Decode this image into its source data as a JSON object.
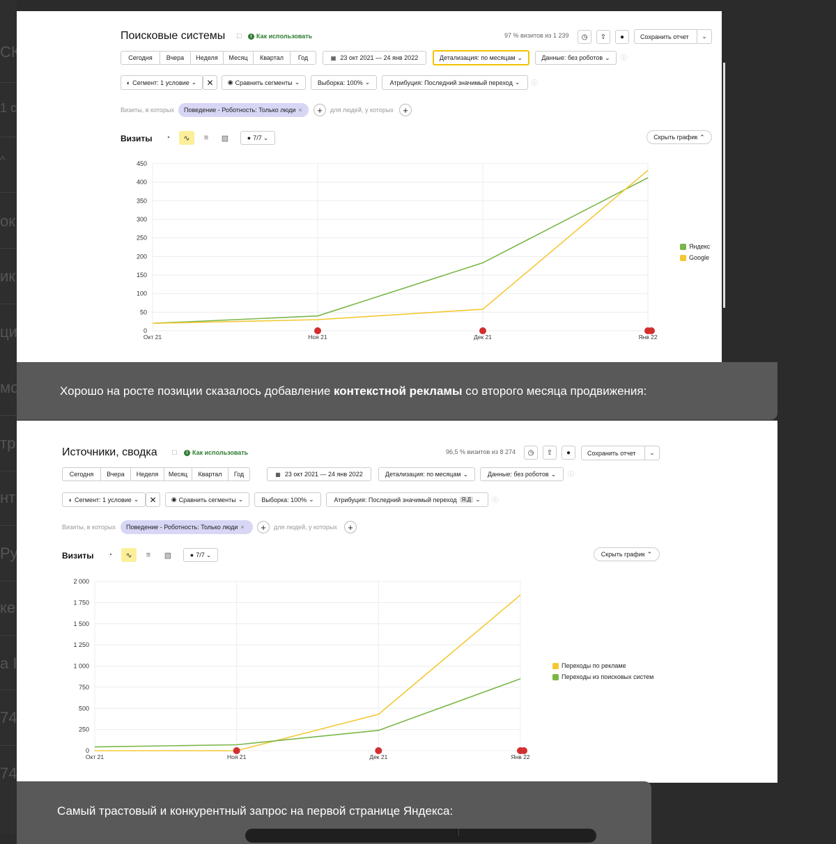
{
  "colors": {
    "yandex_green": "#7ab648",
    "google_yellow": "#f5c833",
    "marker_red": "#d32f2f"
  },
  "background_sidebar": {
    "fragments": [
      "СК",
      "1 с",
      "^",
      "ок",
      "ик",
      "ци",
      "мо",
      "тр",
      "нт",
      "Ру",
      "ке",
      "а I",
      "74_",
      "74"
    ]
  },
  "report1": {
    "title": "Поисковые системы",
    "howto": "Как использовать",
    "visits_info": "97 % визитов из 1 239",
    "save_label": "Сохранить отчет",
    "periods": [
      "Сегодня",
      "Вчера",
      "Неделя",
      "Месяц",
      "Квартал",
      "Год"
    ],
    "date_range": "23 окт 2021 — 24 янв 2022",
    "detail": "Детализация: по месяцам",
    "data_filter": "Данные: без роботов",
    "segment": "Сегмент: 1 условие",
    "compare": "Сравнить сегменты",
    "sample": "Выборка: 100%",
    "attribution": "Атрибуция: Последний значимый переход",
    "filter_prefix": "Визиты, в которых",
    "filter_chip": "Поведение - Роботность: Только люди",
    "filter_people": "для людей, у которых",
    "visits_label": "Визиты",
    "counter": "7/7",
    "hide_chart": "Скрыть график"
  },
  "report2": {
    "title": "Источники, сводка",
    "howto": "Как использовать",
    "visits_info": "96,5 % визитов из 8 274",
    "save_label": "Сохранить отчет",
    "periods": [
      "Сегодня",
      "Вчера",
      "Неделя",
      "Месяц",
      "Квартал",
      "Год"
    ],
    "date_range": "23 окт 2021 — 24 янв 2022",
    "detail": "Детализация: по месяцам",
    "data_filter": "Данные: без роботов",
    "segment": "Сегмент: 1 условие",
    "compare": "Сравнить сегменты",
    "sample": "Выборка: 100%",
    "attribution": "Атрибуция: Последний значимый переход",
    "attribution_badge": "Я.Д",
    "filter_prefix": "Визиты, в которых",
    "filter_chip": "Поведение - Роботность: Только люди",
    "filter_people": "для людей, у которых",
    "visits_label": "Визиты",
    "counter": "7/7",
    "hide_chart": "Скрыть график"
  },
  "caption1": {
    "before": "Хорошо на росте позиции сказалось добавление ",
    "bold": "контекстной рекламы",
    "after": " со второго месяца продвижения:"
  },
  "caption2": {
    "text": "Самый трастовый и конкурентный запрос на первой странице Яндекса:"
  },
  "chart_data": [
    {
      "type": "line",
      "categories": [
        "Окт 21",
        "Ноя 21",
        "Дек 21",
        "Янв 22"
      ],
      "ylim": [
        0,
        450
      ],
      "yticks": [
        0,
        50,
        100,
        150,
        200,
        250,
        300,
        350,
        400,
        450
      ],
      "ytick_labels": [
        "0",
        "50",
        "100",
        "150",
        "200",
        "250",
        "300",
        "350",
        "400",
        "450"
      ],
      "legend_position": "right",
      "grid": true,
      "series": [
        {
          "name": "Яндекс",
          "color": "#7ab648",
          "values": [
            20,
            40,
            183,
            412
          ]
        },
        {
          "name": "Google",
          "color": "#f5c833",
          "values": [
            20,
            30,
            58,
            432
          ]
        }
      ]
    },
    {
      "type": "line",
      "categories": [
        "Окт 21",
        "Ноя 21",
        "Дек 21",
        "Янв 22"
      ],
      "ylim": [
        0,
        2000
      ],
      "yticks": [
        0,
        250,
        500,
        750,
        1000,
        1250,
        1500,
        1750,
        2000
      ],
      "ytick_labels": [
        "0",
        "250",
        "500",
        "750",
        "1 000",
        "1 250",
        "1 500",
        "1 750",
        "2 000"
      ],
      "legend_position": "right",
      "grid": true,
      "series": [
        {
          "name": "Переходы по рекламе",
          "color": "#f5c833",
          "values": [
            0,
            0,
            430,
            1840
          ]
        },
        {
          "name": "Переходы из поисковых систем",
          "color": "#7ab648",
          "values": [
            45,
            70,
            240,
            850
          ]
        }
      ]
    }
  ]
}
